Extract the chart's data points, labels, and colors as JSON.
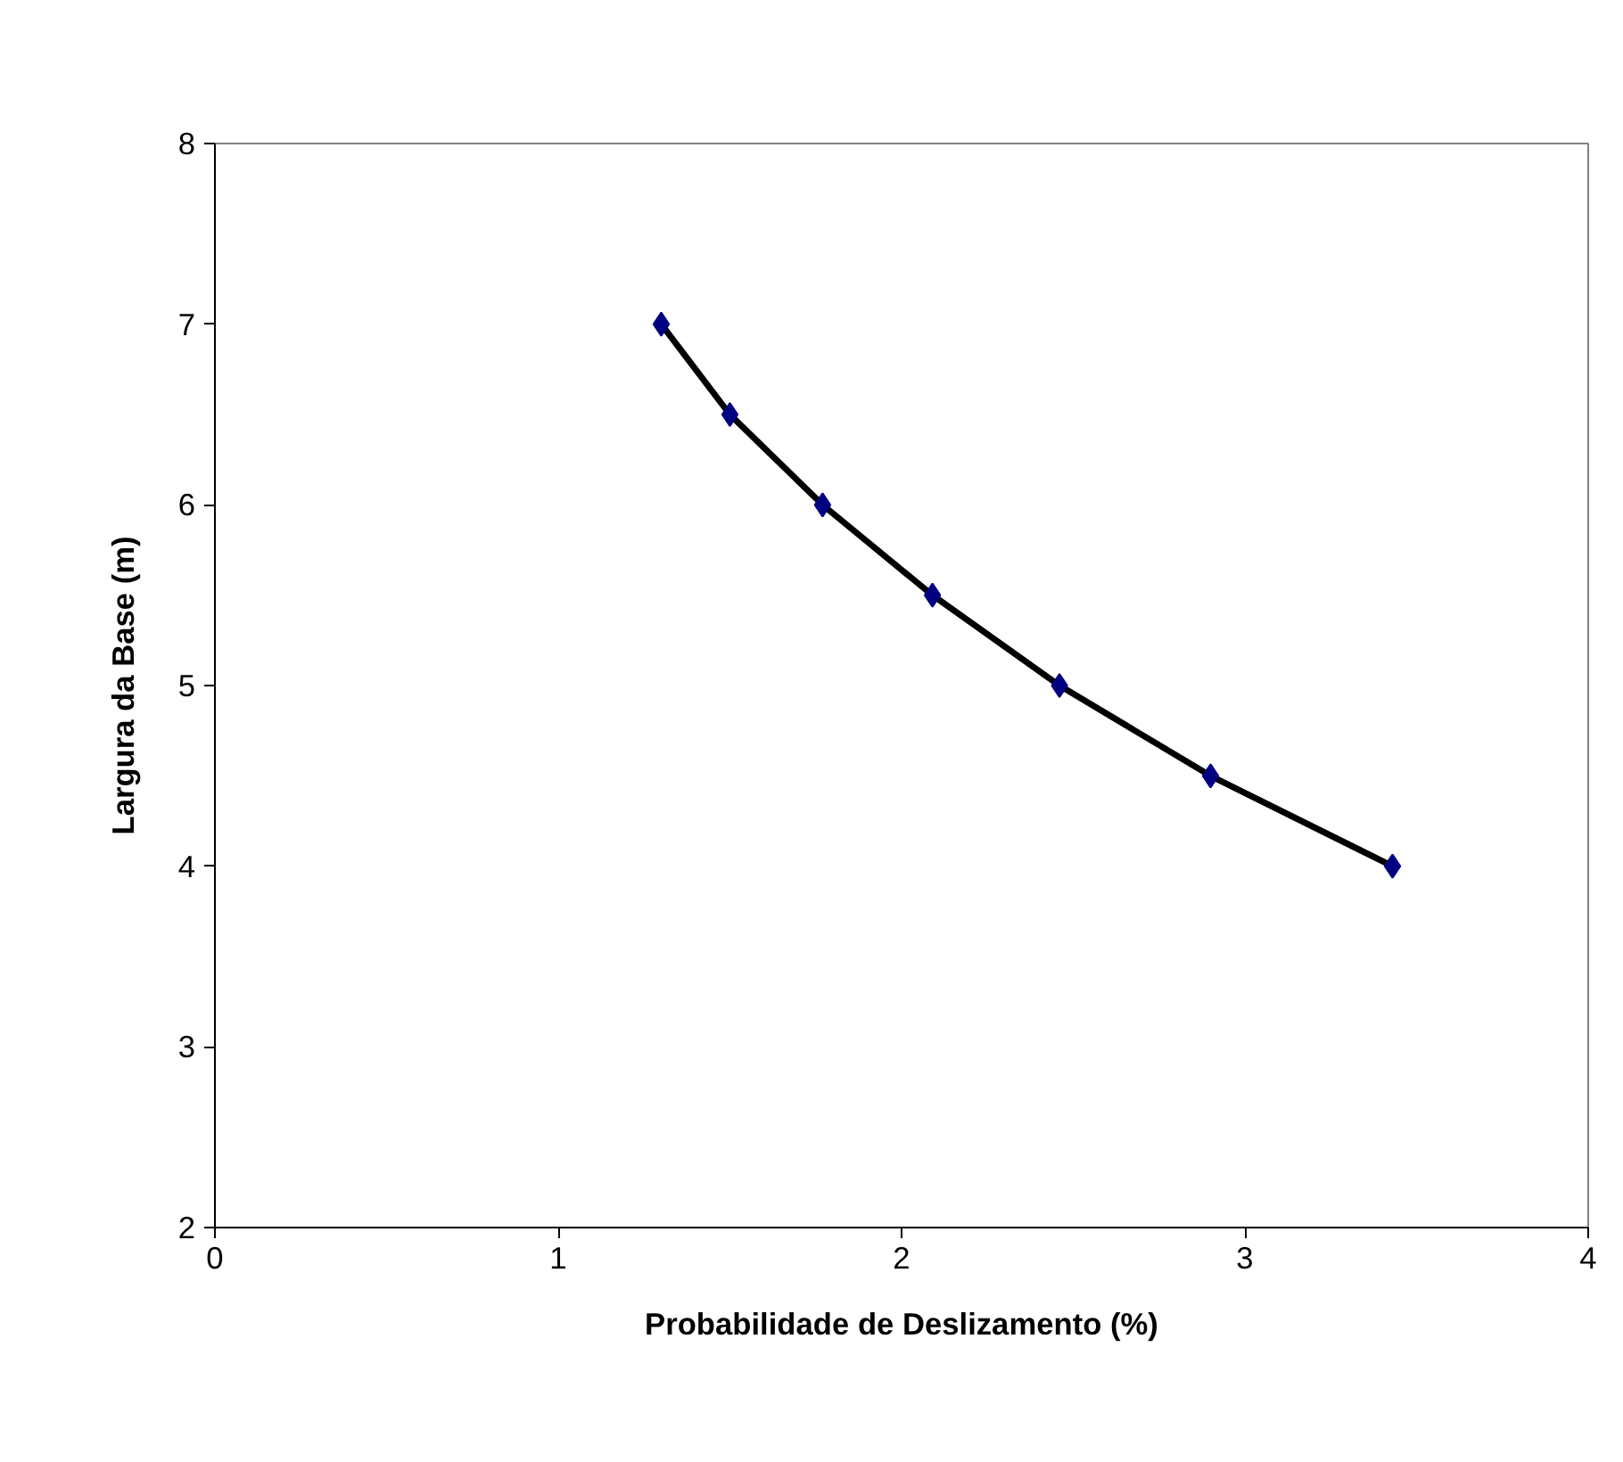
{
  "chart_data": {
    "type": "scatter",
    "xlabel": "Probabilidade de Deslizamento (%)",
    "ylabel": "Largura da Base (m)",
    "xlim": [
      0,
      4
    ],
    "xticks": [
      0,
      1,
      2,
      3,
      4
    ],
    "ylim": [
      2,
      8
    ],
    "yticks": [
      2,
      3,
      4,
      5,
      6,
      7,
      8
    ],
    "series": [
      {
        "type": "line",
        "color": "#000000",
        "marker": "none",
        "line_style": "solid",
        "x": [
          1.3,
          1.5,
          1.77,
          2.09,
          2.46,
          2.9,
          3.43
        ],
        "values": [
          7,
          6.5,
          6,
          5.5,
          5,
          4.5,
          4
        ]
      },
      {
        "color": "#000080",
        "marker": "diamond",
        "x": [
          1.3,
          1.5,
          1.77,
          2.09,
          2.46,
          2.9,
          3.43
        ],
        "values": [
          7,
          6.5,
          6,
          5.5,
          5,
          4.5,
          4
        ]
      }
    ]
  }
}
